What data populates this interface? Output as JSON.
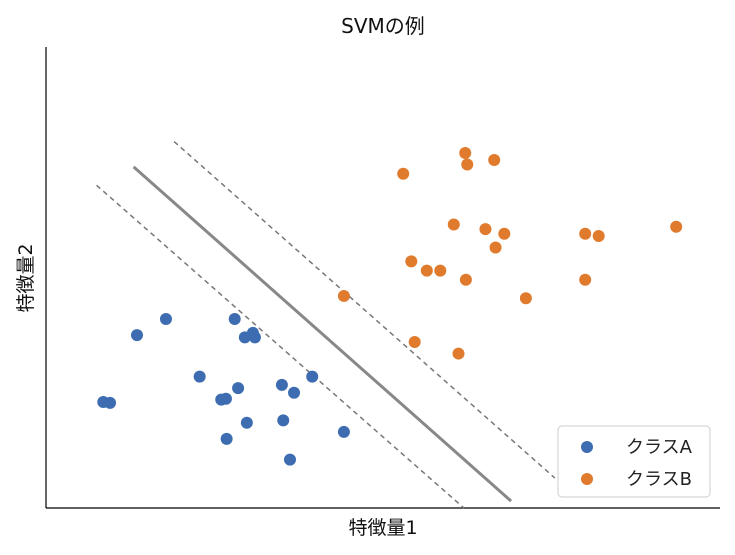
{
  "chart_data": {
    "type": "scatter",
    "title": "SVMの例",
    "xlabel": "特徴量1",
    "ylabel": "特徴量2",
    "xlim": [
      0,
      10
    ],
    "ylim": [
      0,
      10
    ],
    "grid": false,
    "ticks": false,
    "legend_position": "bottom-right",
    "series": [
      {
        "name": "クラスA",
        "color": "#3d6db0",
        "points": [
          [
            0.85,
            2.3
          ],
          [
            0.95,
            2.28
          ],
          [
            1.35,
            3.75
          ],
          [
            1.78,
            4.1
          ],
          [
            2.28,
            2.85
          ],
          [
            2.6,
            2.35
          ],
          [
            2.67,
            2.37
          ],
          [
            2.68,
            1.5
          ],
          [
            2.8,
            4.1
          ],
          [
            2.85,
            2.6
          ],
          [
            2.95,
            3.7
          ],
          [
            2.98,
            1.85
          ],
          [
            3.07,
            3.8
          ],
          [
            3.1,
            3.7
          ],
          [
            3.5,
            2.67
          ],
          [
            3.52,
            1.9
          ],
          [
            3.62,
            1.05
          ],
          [
            3.68,
            2.5
          ],
          [
            3.95,
            2.85
          ],
          [
            4.42,
            1.65
          ]
        ]
      },
      {
        "name": "クラスB",
        "color": "#e07b2e",
        "points": [
          [
            4.42,
            4.6
          ],
          [
            5.3,
            7.25
          ],
          [
            5.42,
            5.35
          ],
          [
            5.47,
            3.6
          ],
          [
            5.65,
            5.15
          ],
          [
            5.85,
            5.15
          ],
          [
            6.05,
            6.15
          ],
          [
            6.12,
            3.35
          ],
          [
            6.22,
            7.7
          ],
          [
            6.25,
            7.45
          ],
          [
            6.23,
            4.95
          ],
          [
            6.52,
            6.05
          ],
          [
            6.65,
            7.55
          ],
          [
            6.67,
            5.65
          ],
          [
            6.8,
            5.95
          ],
          [
            7.12,
            4.55
          ],
          [
            8.0,
            5.95
          ],
          [
            8.0,
            4.95
          ],
          [
            8.2,
            5.9
          ],
          [
            9.35,
            6.1
          ]
        ]
      }
    ],
    "lines": [
      {
        "role": "decision-boundary",
        "style": "solid",
        "color": "#888888",
        "from": [
          1.3,
          7.4
        ],
        "to": [
          6.9,
          0.15
        ]
      },
      {
        "role": "margin-upper",
        "style": "dashed",
        "color": "#777777",
        "from": [
          1.9,
          7.95
        ],
        "to": [
          7.55,
          0.65
        ]
      },
      {
        "role": "margin-lower",
        "style": "dashed",
        "color": "#777777",
        "from": [
          0.75,
          7.0
        ],
        "to": [
          6.2,
          0.0
        ]
      }
    ]
  }
}
